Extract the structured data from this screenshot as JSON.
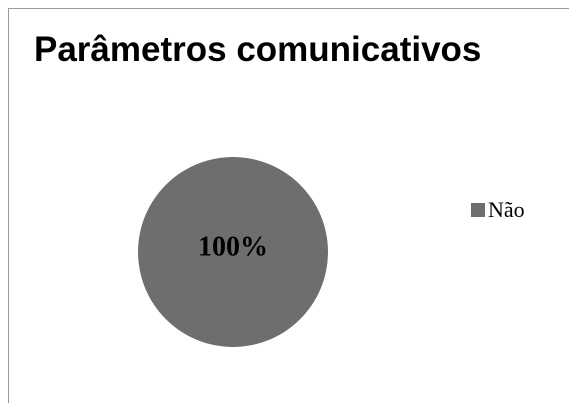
{
  "chart_data": {
    "type": "pie",
    "title": "Parâmetros comunicativos",
    "categories": [
      "Não"
    ],
    "values": [
      100
    ],
    "data_labels": [
      "100%"
    ],
    "legend_position": "right",
    "colors": [
      "#6e6e6e"
    ]
  }
}
